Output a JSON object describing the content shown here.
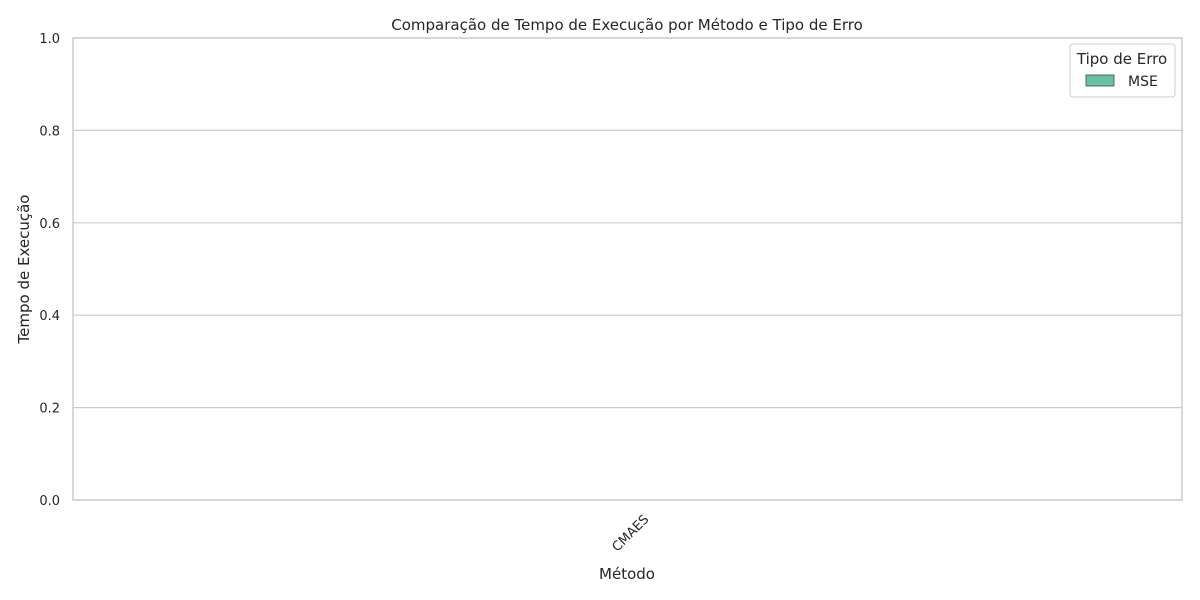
{
  "chart_data": {
    "type": "bar",
    "title": "Comparação de Tempo de Execução por Método e Tipo de Erro",
    "xlabel": "Método",
    "ylabel": "Tempo de Execução",
    "categories": [
      "CMAES"
    ],
    "series": [
      {
        "name": "MSE",
        "values": [
          null
        ],
        "color": "#66c2a5"
      }
    ],
    "ylim": [
      0,
      1
    ],
    "yticks": [
      "0.0",
      "0.2",
      "0.4",
      "0.6",
      "0.8",
      "1.0"
    ],
    "grid": "horizontal",
    "legend": {
      "title": "Tipo de Erro",
      "placement": "top-right"
    }
  }
}
